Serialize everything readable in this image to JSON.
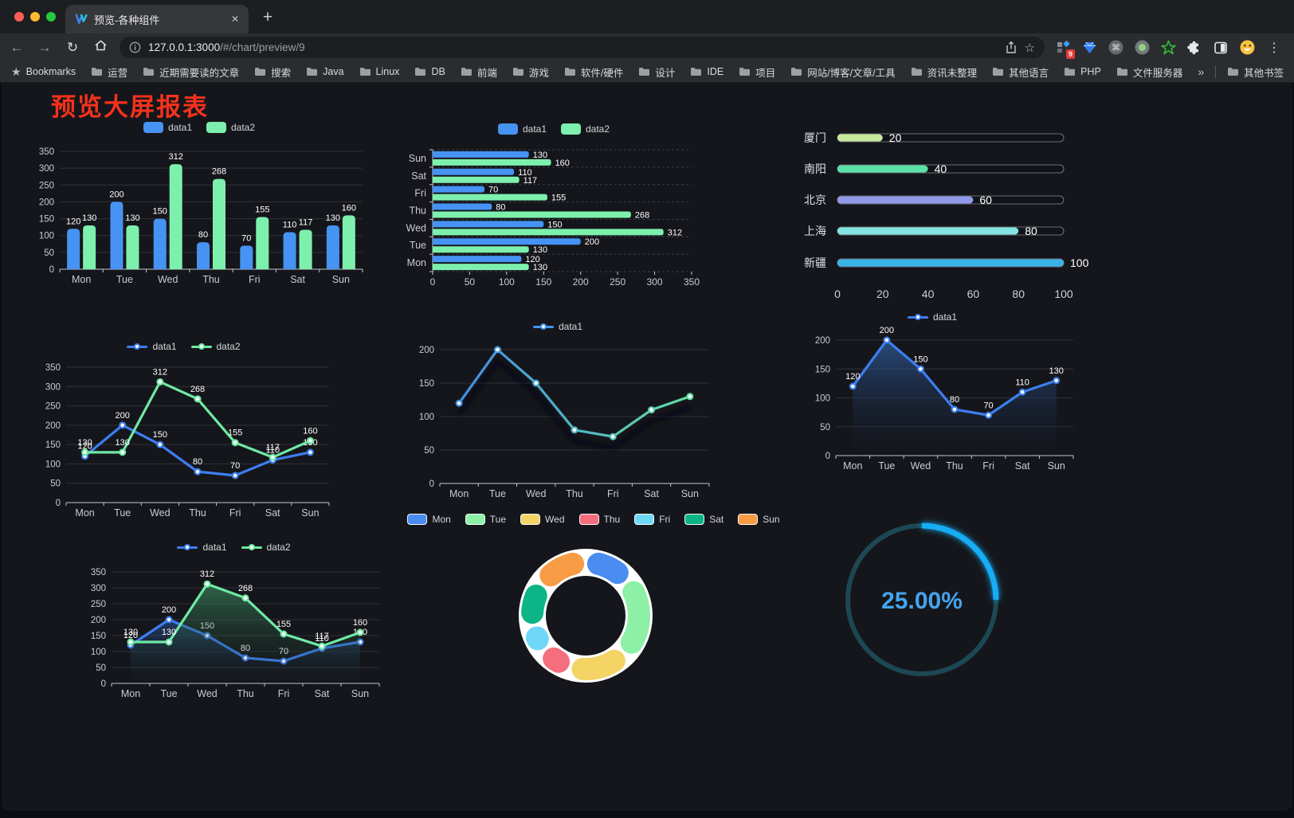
{
  "browser": {
    "tab": {
      "title": "预览-各种组件"
    },
    "url": {
      "host": "127.0.0.1:3000",
      "path": "/#/chart/preview/9"
    },
    "glyphs": {
      "back": "←",
      "forward": "→",
      "reload": "↻",
      "close": "✕",
      "newtab": "+",
      "dots": "⋮",
      "star": "☆",
      "cmd": "⌘"
    },
    "bookmarks_label": "Bookmarks",
    "bookmarks": [
      "运营",
      "近期需要读的文章",
      "搜索",
      "Java",
      "Linux",
      "DB",
      "前端",
      "游戏",
      "软件/硬件",
      "设计",
      "IDE",
      "项目",
      "网站/博客/文章/工具",
      "资讯未整理",
      "其他语言",
      "PHP",
      "文件服务器"
    ],
    "overflow_glyph": "»",
    "other_bookmarks": "其他书签",
    "ext_badge": "9"
  },
  "page": {
    "title": "预览大屏报表",
    "title_color": "#f5321c",
    "background": "#15161b"
  },
  "chart_data": [
    {
      "id": "bar-vertical",
      "type": "bar",
      "legend": {
        "style": "bar",
        "items": [
          {
            "label": "data1",
            "color": "#4693f4"
          },
          {
            "label": "data2",
            "color": "#7df0ad"
          }
        ]
      },
      "categories": [
        "Mon",
        "Tue",
        "Wed",
        "Thu",
        "Fri",
        "Sat",
        "Sun"
      ],
      "series": [
        {
          "name": "data1",
          "color": "#4693f4",
          "values": [
            120,
            200,
            150,
            80,
            70,
            110,
            130
          ]
        },
        {
          "name": "data2",
          "color": "#7df0ad",
          "values": [
            130,
            130,
            312,
            268,
            155,
            117,
            160
          ]
        }
      ],
      "ylim": [
        0,
        350
      ],
      "yticks": [
        0,
        50,
        100,
        150,
        200,
        250,
        300,
        350
      ],
      "show_labels": true
    },
    {
      "id": "bar-horizontal",
      "type": "bar-horizontal",
      "legend": {
        "style": "bar",
        "items": [
          {
            "label": "data1",
            "color": "#4693f4"
          },
          {
            "label": "data2",
            "color": "#7df0ad"
          }
        ]
      },
      "categories_top_to_bottom": [
        "Sun",
        "Sat",
        "Fri",
        "Thu",
        "Wed",
        "Tue",
        "Mon"
      ],
      "series": [
        {
          "name": "data1",
          "color": "#4693f4",
          "values": [
            130,
            110,
            70,
            80,
            150,
            200,
            120
          ]
        },
        {
          "name": "data2",
          "color": "#7df0ad",
          "values": [
            160,
            117,
            155,
            268,
            312,
            130,
            130
          ]
        }
      ],
      "xlim": [
        0,
        350
      ],
      "xticks": [
        0,
        50,
        100,
        150,
        200,
        250,
        300,
        350
      ],
      "show_labels": true
    },
    {
      "id": "city-progress",
      "type": "progress",
      "items": [
        {
          "label": "厦门",
          "value": 20,
          "color": "#c6e99b"
        },
        {
          "label": "南阳",
          "value": 40,
          "color": "#5be0a6"
        },
        {
          "label": "北京",
          "value": 60,
          "color": "#9099e8"
        },
        {
          "label": "上海",
          "value": 80,
          "color": "#83e5e2"
        },
        {
          "label": "新疆",
          "value": 100,
          "color": "#3ab4e6"
        }
      ],
      "max": 100,
      "xticks": [
        0,
        20,
        40,
        60,
        80,
        100
      ]
    },
    {
      "id": "line-dual",
      "type": "line",
      "legend": {
        "style": "line",
        "items": [
          {
            "label": "data1",
            "color": "#3d7ef0"
          },
          {
            "label": "data2",
            "color": "#6fe9a3"
          }
        ]
      },
      "categories": [
        "Mon",
        "Tue",
        "Wed",
        "Thu",
        "Fri",
        "Sat",
        "Sun"
      ],
      "series": [
        {
          "name": "data1",
          "color": "#3d7ef0",
          "values": [
            120,
            200,
            150,
            80,
            70,
            110,
            130
          ]
        },
        {
          "name": "data2",
          "color": "#6fe9a3",
          "values": [
            130,
            130,
            312,
            268,
            155,
            117,
            160
          ]
        }
      ],
      "ylim": [
        0,
        350
      ],
      "yticks": [
        0,
        50,
        100,
        150,
        200,
        250,
        300,
        350
      ],
      "show_labels": true
    },
    {
      "id": "line-gradient",
      "type": "line",
      "legend": {
        "style": "line",
        "items": [
          {
            "label": "data1",
            "color": "#4693f4"
          }
        ]
      },
      "categories": [
        "Mon",
        "Tue",
        "Wed",
        "Thu",
        "Fri",
        "Sat",
        "Sun"
      ],
      "series": [
        {
          "name": "data1",
          "color": "#3f86ee",
          "gradient": [
            "#3f86ee",
            "#63e69c"
          ],
          "values": [
            120,
            200,
            150,
            80,
            70,
            110,
            130
          ]
        }
      ],
      "ylim": [
        0,
        200
      ],
      "yticks": [
        0,
        50,
        100,
        150,
        200
      ],
      "show_labels": false,
      "shadow": true
    },
    {
      "id": "area-single",
      "type": "line",
      "legend": {
        "style": "line",
        "items": [
          {
            "label": "data1",
            "color": "#3d7ef0"
          }
        ]
      },
      "categories": [
        "Mon",
        "Tue",
        "Wed",
        "Thu",
        "Fri",
        "Sat",
        "Sun"
      ],
      "series": [
        {
          "name": "data1",
          "color": "#3d7ef0",
          "values": [
            120,
            200,
            150,
            80,
            70,
            110,
            130
          ],
          "area": [
            "rgba(52,104,178,0.65)",
            "rgba(20,30,50,0.03)"
          ]
        }
      ],
      "ylim": [
        0,
        200
      ],
      "yticks": [
        0,
        50,
        100,
        150,
        200
      ],
      "show_labels": true
    },
    {
      "id": "area-dual",
      "type": "line",
      "legend": {
        "style": "line",
        "items": [
          {
            "label": "data1",
            "color": "#3d7ef0"
          },
          {
            "label": "data2",
            "color": "#6fe9a3"
          }
        ]
      },
      "categories": [
        "Mon",
        "Tue",
        "Wed",
        "Thu",
        "Fri",
        "Sat",
        "Sun"
      ],
      "series": [
        {
          "name": "data1",
          "color": "#3d7ef0",
          "values": [
            120,
            200,
            150,
            80,
            70,
            110,
            130
          ],
          "area": [
            "rgba(45,90,160,0.55)",
            "rgba(18,28,48,0.02)"
          ]
        },
        {
          "name": "data2",
          "color": "#6fe9a3",
          "values": [
            130,
            130,
            312,
            268,
            155,
            117,
            160
          ],
          "area": [
            "rgba(64,150,104,0.62)",
            "rgba(20,40,34,0.02)"
          ]
        }
      ],
      "ylim": [
        0,
        350
      ],
      "yticks": [
        0,
        50,
        100,
        150,
        200,
        250,
        300,
        350
      ],
      "show_labels": true
    },
    {
      "id": "weekday-donut",
      "type": "pie",
      "legend": {
        "style": "pie",
        "items": [
          {
            "label": "Mon",
            "color": "#4a8cf0"
          },
          {
            "label": "Tue",
            "color": "#8cf0a6"
          },
          {
            "label": "Wed",
            "color": "#f3d464"
          },
          {
            "label": "Thu",
            "color": "#f46e7e"
          },
          {
            "label": "Fri",
            "color": "#6fd8f6"
          },
          {
            "label": "Sat",
            "color": "#0db586"
          },
          {
            "label": "Sun",
            "color": "#f79b45"
          }
        ]
      },
      "labels": [
        "Mon",
        "Tue",
        "Wed",
        "Thu",
        "Fri",
        "Sat",
        "Sun"
      ],
      "values": [
        120,
        200,
        150,
        80,
        70,
        110,
        130
      ],
      "colors": [
        "#4a8cf0",
        "#8cf0a6",
        "#f3d464",
        "#f46e7e",
        "#6fd8f6",
        "#0db586",
        "#f79b45"
      ]
    },
    {
      "id": "progress-gauge",
      "type": "gauge",
      "value": 25,
      "display": "25.00%",
      "track_color": "#1c4854",
      "arc_color": "#17adf4",
      "text_color": "#45a4ed"
    }
  ]
}
